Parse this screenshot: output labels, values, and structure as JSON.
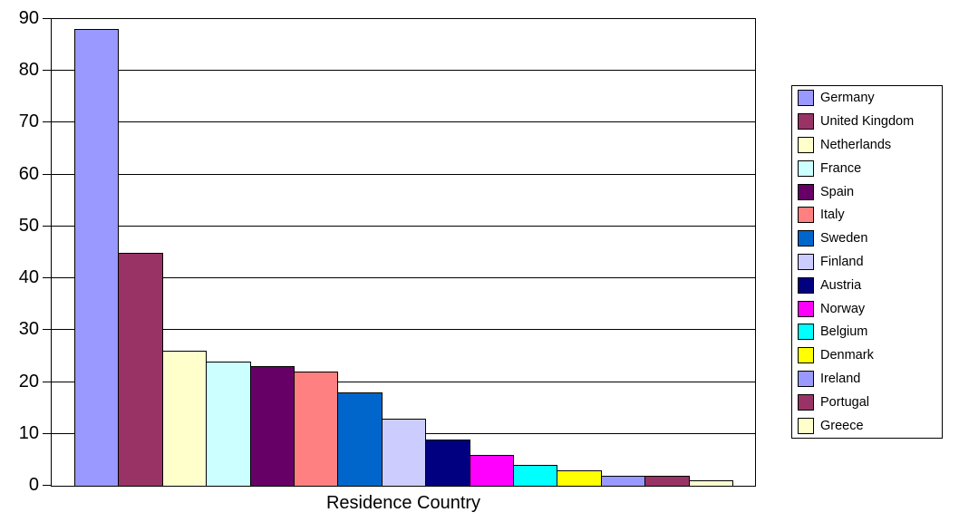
{
  "chart_data": {
    "type": "bar",
    "title": "",
    "xlabel": "Residence Country",
    "ylabel": "",
    "ylim": [
      0,
      90
    ],
    "yticks": [
      0,
      10,
      20,
      30,
      40,
      50,
      60,
      70,
      80,
      90
    ],
    "grid": true,
    "legend_position": "right",
    "background_color": "#FFFFFF",
    "axis_color": "#000000",
    "series": [
      {
        "name": "Germany",
        "value": 88,
        "color": "#9999FF"
      },
      {
        "name": "United Kingdom",
        "value": 45,
        "color": "#993366"
      },
      {
        "name": "Netherlands",
        "value": 26,
        "color": "#FFFFCC"
      },
      {
        "name": "France",
        "value": 24,
        "color": "#CCFFFF"
      },
      {
        "name": "Spain",
        "value": 23,
        "color": "#660066"
      },
      {
        "name": "Italy",
        "value": 22,
        "color": "#FF8080"
      },
      {
        "name": "Sweden",
        "value": 18,
        "color": "#0066CC"
      },
      {
        "name": "Finland",
        "value": 13,
        "color": "#CCCCFF"
      },
      {
        "name": "Austria",
        "value": 9,
        "color": "#000080"
      },
      {
        "name": "Norway",
        "value": 6,
        "color": "#FF00FF"
      },
      {
        "name": "Belgium",
        "value": 4,
        "color": "#00FFFF"
      },
      {
        "name": "Denmark",
        "value": 3,
        "color": "#FFFF00"
      },
      {
        "name": "Ireland",
        "value": 2,
        "color": "#9999FF"
      },
      {
        "name": "Portugal",
        "value": 2,
        "color": "#993366"
      },
      {
        "name": "Greece",
        "value": 1,
        "color": "#FFFFCC"
      }
    ]
  }
}
